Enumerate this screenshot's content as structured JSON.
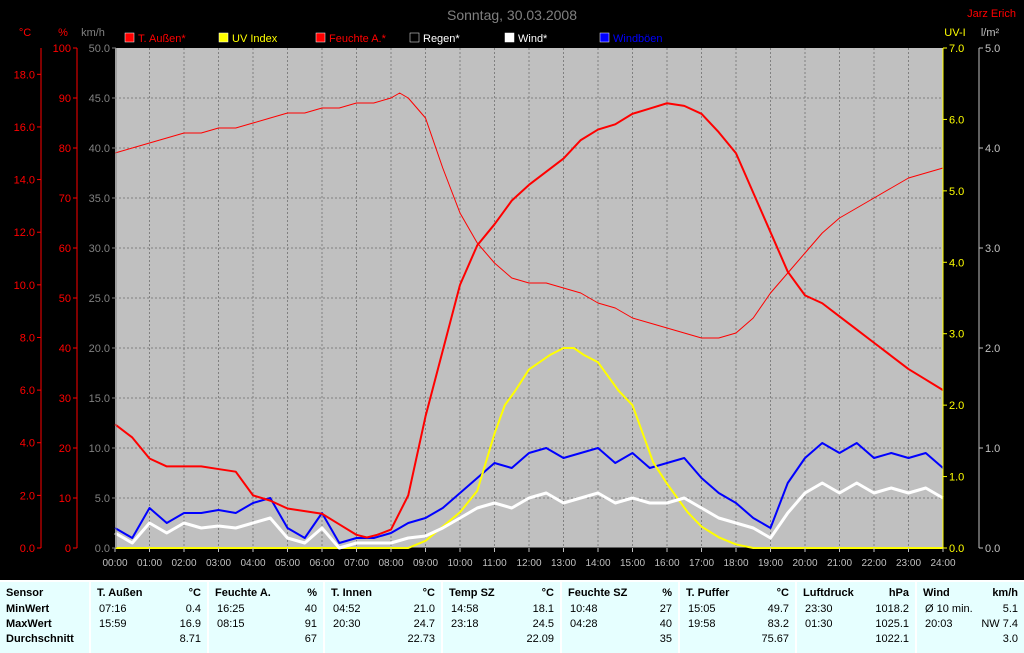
{
  "chart_data": {
    "type": "line",
    "title": "Sonntag, 30.03.2008",
    "author": "Jarz Erich",
    "x_ticks": [
      "00:00",
      "01:00",
      "02:00",
      "03:00",
      "04:00",
      "05:00",
      "06:00",
      "07:00",
      "08:00",
      "09:00",
      "10:00",
      "11:00",
      "12:00",
      "13:00",
      "14:00",
      "15:00",
      "16:00",
      "17:00",
      "18:00",
      "19:00",
      "20:00",
      "21:00",
      "22:00",
      "23:00",
      "24:00"
    ],
    "xlim": [
      0,
      24
    ],
    "y_axes": {
      "temp": {
        "unit": "°C",
        "ticks": [
          "0.0",
          "2.0",
          "4.0",
          "6.0",
          "8.0",
          "10.0",
          "12.0",
          "14.0",
          "16.0",
          "18.0"
        ],
        "range": [
          0,
          19
        ]
      },
      "humidity": {
        "unit": "%",
        "ticks": [
          "0",
          "10",
          "20",
          "30",
          "40",
          "50",
          "60",
          "70",
          "80",
          "90",
          "100"
        ],
        "range": [
          0,
          100
        ]
      },
      "wind": {
        "unit": "km/h",
        "ticks": [
          "0.0",
          "5.0",
          "10.0",
          "15.0",
          "20.0",
          "25.0",
          "30.0",
          "35.0",
          "40.0",
          "45.0",
          "50.0"
        ],
        "range": [
          0,
          50
        ]
      },
      "uv": {
        "unit": "UV-I",
        "ticks": [
          "0.0",
          "1.0",
          "2.0",
          "3.0",
          "4.0",
          "5.0",
          "6.0",
          "7.0"
        ],
        "range": [
          0,
          7
        ]
      },
      "rain": {
        "unit": "l/m²",
        "ticks": [
          "0.0",
          "1.0",
          "2.0",
          "3.0",
          "4.0",
          "5.0"
        ],
        "range": [
          0,
          5
        ]
      }
    },
    "legend": [
      {
        "name": "T. Außen*",
        "color": "#ff0000"
      },
      {
        "name": "UV Index",
        "color": "#ffff00"
      },
      {
        "name": "Feuchte A.*",
        "color": "#ff0000"
      },
      {
        "name": "Regen*",
        "color": "#000000"
      },
      {
        "name": "Wind*",
        "color": "#ffffff"
      },
      {
        "name": "Windböen",
        "color": "#0000ff"
      }
    ],
    "series": [
      {
        "name": "T. Außen*",
        "axis": "temp",
        "color": "#ff0000",
        "x": [
          0,
          0.5,
          1,
          1.5,
          2,
          2.5,
          3,
          3.5,
          4,
          4.5,
          5,
          5.5,
          6,
          6.5,
          7,
          7.3,
          7.6,
          8,
          8.5,
          9,
          9.5,
          10,
          10.5,
          11,
          11.5,
          12,
          12.5,
          13,
          13.5,
          14,
          14.5,
          15,
          15.5,
          16,
          16.5,
          17,
          17.5,
          18,
          18.5,
          19,
          19.5,
          20,
          20.5,
          21,
          21.5,
          22,
          22.5,
          23,
          23.5,
          24
        ],
        "y": [
          4.7,
          4.2,
          3.4,
          3.1,
          3.1,
          3.1,
          3.0,
          2.9,
          2.0,
          1.8,
          1.5,
          1.4,
          1.3,
          0.9,
          0.5,
          0.4,
          0.5,
          0.7,
          2.0,
          5.0,
          7.5,
          10.0,
          11.5,
          12.3,
          13.2,
          13.8,
          14.3,
          14.8,
          15.5,
          15.9,
          16.1,
          16.5,
          16.7,
          16.9,
          16.8,
          16.5,
          15.8,
          15.0,
          13.5,
          12.0,
          10.5,
          9.6,
          9.3,
          8.8,
          8.3,
          7.8,
          7.3,
          6.8,
          6.4,
          6.0
        ]
      },
      {
        "name": "Feuchte A.*",
        "axis": "humidity",
        "color": "#ff0000",
        "x": [
          0,
          0.5,
          1,
          1.5,
          2,
          2.5,
          3,
          3.5,
          4,
          4.5,
          5,
          5.5,
          6,
          6.5,
          7,
          7.5,
          8,
          8.25,
          8.5,
          9,
          9.5,
          10,
          10.5,
          11,
          11.5,
          12,
          12.5,
          13,
          13.5,
          14,
          14.5,
          15,
          15.5,
          16,
          16.5,
          17,
          17.5,
          18,
          18.5,
          19,
          19.5,
          20,
          20.5,
          21,
          21.5,
          22,
          22.5,
          23,
          23.5,
          24
        ],
        "y": [
          79,
          80,
          81,
          82,
          83,
          83,
          84,
          84,
          85,
          86,
          87,
          87,
          88,
          88,
          89,
          89,
          90,
          91,
          90,
          86,
          76,
          67,
          61,
          57,
          54,
          53,
          53,
          52,
          51,
          49,
          48,
          46,
          45,
          44,
          43,
          42,
          42,
          43,
          46,
          51,
          55,
          59,
          63,
          66,
          68,
          70,
          72,
          74,
          75,
          76
        ]
      },
      {
        "name": "UV Index",
        "axis": "uv",
        "color": "#ffff00",
        "x": [
          0,
          8.5,
          9,
          9.5,
          10,
          10.5,
          11,
          11.3,
          11.6,
          12,
          12.3,
          12.6,
          13,
          13.3,
          13.6,
          14,
          14.3,
          14.6,
          15,
          15.3,
          15.6,
          16,
          16.3,
          16.6,
          17,
          17.5,
          18,
          18.5,
          24
        ],
        "y": [
          0,
          0,
          0.1,
          0.3,
          0.5,
          0.8,
          1.6,
          2.0,
          2.2,
          2.5,
          2.6,
          2.7,
          2.8,
          2.8,
          2.7,
          2.6,
          2.4,
          2.2,
          2.0,
          1.6,
          1.2,
          0.9,
          0.7,
          0.5,
          0.3,
          0.15,
          0.05,
          0,
          0
        ]
      },
      {
        "name": "Wind*",
        "axis": "wind",
        "color": "#ffffff",
        "x": [
          0,
          0.5,
          1,
          1.5,
          2,
          2.5,
          3,
          3.5,
          4,
          4.5,
          5,
          5.5,
          6,
          6.5,
          7,
          7.5,
          8,
          8.5,
          9,
          9.5,
          10,
          10.5,
          11,
          11.5,
          12,
          12.5,
          13,
          13.5,
          14,
          14.5,
          15,
          15.5,
          16,
          16.5,
          17,
          17.5,
          18,
          18.5,
          19,
          19.5,
          20,
          20.5,
          21,
          21.5,
          22,
          22.5,
          23,
          23.5,
          24
        ],
        "y": [
          1.5,
          0.5,
          2.5,
          1.5,
          2.5,
          2.0,
          2.2,
          2.0,
          2.5,
          3.0,
          1.0,
          0.5,
          2.0,
          0.0,
          0.5,
          0.5,
          0.5,
          1.0,
          1.2,
          2.0,
          3.0,
          4.0,
          4.5,
          4.0,
          5.0,
          5.5,
          4.5,
          5.0,
          5.5,
          4.5,
          5.0,
          4.5,
          4.5,
          5.0,
          4.0,
          3.0,
          2.5,
          2.0,
          1.0,
          3.5,
          5.5,
          6.5,
          5.5,
          6.5,
          5.5,
          6.0,
          5.5,
          6.0,
          5.0
        ]
      },
      {
        "name": "Windböen",
        "axis": "wind",
        "color": "#0000ff",
        "x": [
          0,
          0.5,
          1,
          1.5,
          2,
          2.5,
          3,
          3.5,
          4,
          4.5,
          5,
          5.5,
          6,
          6.5,
          7,
          7.5,
          8,
          8.5,
          9,
          9.5,
          10,
          10.5,
          11,
          11.5,
          12,
          12.5,
          13,
          13.5,
          14,
          14.5,
          15,
          15.5,
          16,
          16.5,
          17,
          17.5,
          18,
          18.5,
          19,
          19.5,
          20,
          20.5,
          21,
          21.5,
          22,
          22.5,
          23,
          23.5,
          24
        ],
        "y": [
          2.0,
          1.0,
          4.0,
          2.5,
          3.5,
          3.5,
          3.8,
          3.5,
          4.5,
          5.0,
          2.0,
          1.0,
          3.5,
          0.5,
          1.0,
          1.0,
          1.5,
          2.5,
          3.0,
          4.0,
          5.5,
          7.0,
          8.5,
          8.0,
          9.5,
          10.0,
          9.0,
          9.5,
          10.0,
          8.5,
          9.5,
          8.0,
          8.5,
          9.0,
          7.0,
          5.5,
          4.5,
          3.0,
          2.0,
          6.5,
          9.0,
          10.5,
          9.5,
          10.5,
          9.0,
          9.5,
          9.0,
          9.5,
          8.0
        ]
      },
      {
        "name": "Regen*",
        "axis": "rain",
        "color": "#000000",
        "x": [
          0,
          24
        ],
        "y": [
          0,
          0
        ]
      }
    ]
  },
  "stats": {
    "row_labels": {
      "sensor": "Sensor",
      "min": "MinWert",
      "max": "MaxWert",
      "avg": "Durchschnitt"
    },
    "columns": [
      {
        "header": "T. Außen",
        "unit": "°C",
        "min_time": "07:16",
        "min_val": "0.4",
        "max_time": "15:59",
        "max_val": "16.9",
        "avg": "8.71"
      },
      {
        "header": "Feuchte A.",
        "unit": "%",
        "min_time": "16:25",
        "min_val": "40",
        "max_time": "08:15",
        "max_val": "91",
        "avg": "67"
      },
      {
        "header": "T. Innen",
        "unit": "°C",
        "min_time": "04:52",
        "min_val": "21.0",
        "max_time": "20:30",
        "max_val": "24.7",
        "avg": "22.73"
      },
      {
        "header": "Temp SZ",
        "unit": "°C",
        "min_time": "14:58",
        "min_val": "18.1",
        "max_time": "23:18",
        "max_val": "24.5",
        "avg": "22.09"
      },
      {
        "header": "Feuchte SZ",
        "unit": "%",
        "min_time": "10:48",
        "min_val": "27",
        "max_time": "04:28",
        "max_val": "40",
        "avg": "35"
      },
      {
        "header": "T. Puffer",
        "unit": "°C",
        "min_time": "15:05",
        "min_val": "49.7",
        "max_time": "19:58",
        "max_val": "83.2",
        "avg": "75.67"
      },
      {
        "header": "Luftdruck",
        "unit": "hPa",
        "min_time": "23:30",
        "min_val": "1018.2",
        "max_time": "01:30",
        "max_val": "1025.1",
        "avg": "1022.1"
      },
      {
        "header": "Wind",
        "unit": "km/h",
        "min_time": "Ø 10 min.",
        "min_val": "5.1",
        "max_time": "20:03",
        "max_val": "NW 7.4",
        "avg": "3.0"
      }
    ]
  }
}
